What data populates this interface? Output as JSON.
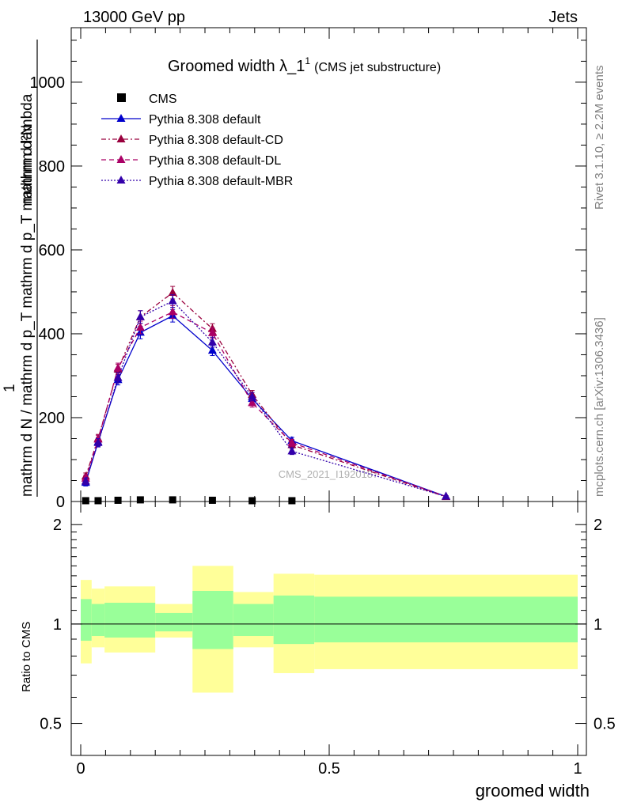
{
  "header": {
    "left": "13000 GeV pp",
    "right": "Jets"
  },
  "side": {
    "rivet": "Rivet 3.1.10, ≥ 2.2M events",
    "mcplots": "mcplots.cern.ch [arXiv:1306.3436]"
  },
  "chart_data": [
    {
      "type": "line",
      "title": "Groomed width λ_1",
      "title_sup": "1",
      "subtitle": "(CMS jet substructure)",
      "watermark": "CMS_2021_I1920187",
      "ylabel_numerator": "mathrm d²N",
      "ylabel_denominator": "mathrm d N / mathrm d p_T mathrm d p_T mathrm d lambda",
      "ylabel_prefix": "1",
      "xlim": [
        0,
        1
      ],
      "ylim": [
        0,
        1130
      ],
      "yticks": [
        0,
        200,
        400,
        600,
        800,
        1000
      ],
      "legend_position": "top-left",
      "colors": {
        "cms": "#000000",
        "default": "#0000cc",
        "cd": "#99003d",
        "dl": "#aa0066",
        "mbr": "#3300aa"
      },
      "cms": {
        "name": "CMS",
        "x": [
          0.01,
          0.035,
          0.075,
          0.12,
          0.185,
          0.265,
          0.345,
          0.425
        ],
        "y": [
          1,
          1,
          2,
          3,
          3,
          2,
          1,
          1
        ]
      },
      "series": [
        {
          "name": "Pythia 8.308 default",
          "key": "default",
          "style": "solid",
          "x": [
            0.01,
            0.035,
            0.075,
            0.12,
            0.185,
            0.265,
            0.345,
            0.425,
            0.735
          ],
          "y": [
            45,
            142,
            290,
            403,
            443,
            360,
            245,
            145,
            12
          ],
          "err": [
            8,
            10,
            12,
            15,
            15,
            12,
            10,
            8,
            2
          ]
        },
        {
          "name": "Pythia 8.308 default-CD",
          "key": "cd",
          "style": "dashdot",
          "x": [
            0.01,
            0.035,
            0.075,
            0.12,
            0.185,
            0.265,
            0.345,
            0.425,
            0.735
          ],
          "y": [
            60,
            150,
            315,
            440,
            498,
            412,
            255,
            135,
            11
          ],
          "err": [
            8,
            10,
            12,
            15,
            15,
            12,
            10,
            8,
            2
          ]
        },
        {
          "name": "Pythia 8.308 default-DL",
          "key": "dl",
          "style": "dashed",
          "x": [
            0.01,
            0.035,
            0.075,
            0.12,
            0.185,
            0.265,
            0.345,
            0.425,
            0.735
          ],
          "y": [
            55,
            148,
            318,
            415,
            452,
            402,
            235,
            140,
            12
          ],
          "err": [
            8,
            10,
            12,
            15,
            15,
            12,
            10,
            8,
            2
          ]
        },
        {
          "name": "Pythia 8.308 default-MBR",
          "key": "mbr",
          "style": "dotted",
          "x": [
            0.01,
            0.035,
            0.075,
            0.12,
            0.185,
            0.265,
            0.345,
            0.425,
            0.735
          ],
          "y": [
            48,
            140,
            295,
            440,
            478,
            380,
            250,
            120,
            12
          ],
          "err": [
            8,
            10,
            12,
            15,
            15,
            12,
            10,
            8,
            2
          ]
        }
      ]
    },
    {
      "type": "area",
      "ylabel": "Ratio to CMS",
      "xlabel": "groomed width",
      "xlim": [
        0,
        1
      ],
      "ylim": [
        0.4,
        2.35
      ],
      "yticks": [
        0.5,
        1,
        2
      ],
      "xticks": [
        0,
        0.5,
        1
      ],
      "colors": {
        "inner": "#99ff99",
        "outer": "#ffff99",
        "line": "#000000"
      },
      "bands": [
        {
          "x0": 0.0,
          "x1": 0.022,
          "inner": [
            0.89,
            1.19
          ],
          "outer": [
            0.76,
            1.36
          ]
        },
        {
          "x0": 0.022,
          "x1": 0.048,
          "inner": [
            0.92,
            1.15
          ],
          "outer": [
            0.85,
            1.28
          ]
        },
        {
          "x0": 0.048,
          "x1": 0.15,
          "inner": [
            0.91,
            1.16
          ],
          "outer": [
            0.82,
            1.3
          ]
        },
        {
          "x0": 0.15,
          "x1": 0.225,
          "inner": [
            0.95,
            1.08
          ],
          "outer": [
            0.91,
            1.15
          ]
        },
        {
          "x0": 0.225,
          "x1": 0.307,
          "inner": [
            0.84,
            1.26
          ],
          "outer": [
            0.62,
            1.5
          ]
        },
        {
          "x0": 0.307,
          "x1": 0.388,
          "inner": [
            0.92,
            1.15
          ],
          "outer": [
            0.85,
            1.25
          ]
        },
        {
          "x0": 0.388,
          "x1": 0.47,
          "inner": [
            0.87,
            1.22
          ],
          "outer": [
            0.71,
            1.42
          ]
        },
        {
          "x0": 0.47,
          "x1": 1.0,
          "inner": [
            0.88,
            1.21
          ],
          "outer": [
            0.73,
            1.41
          ]
        }
      ]
    }
  ]
}
